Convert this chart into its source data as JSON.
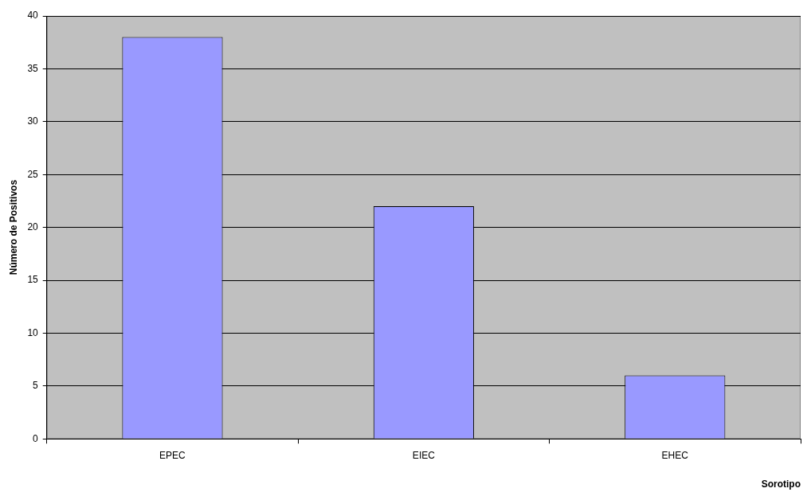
{
  "chart_data": {
    "type": "bar",
    "xlabel": "Sorotipo",
    "ylabel": "Número de Positivos",
    "categories": [
      "EPEC",
      "EIEC",
      "EHEC"
    ],
    "values": [
      38,
      22,
      6
    ],
    "color": "#9999ff",
    "ylim": [
      0,
      40
    ],
    "yticks": [
      0,
      5,
      10,
      15,
      20,
      25,
      30,
      35,
      40
    ],
    "grid": "y",
    "legend": false
  }
}
